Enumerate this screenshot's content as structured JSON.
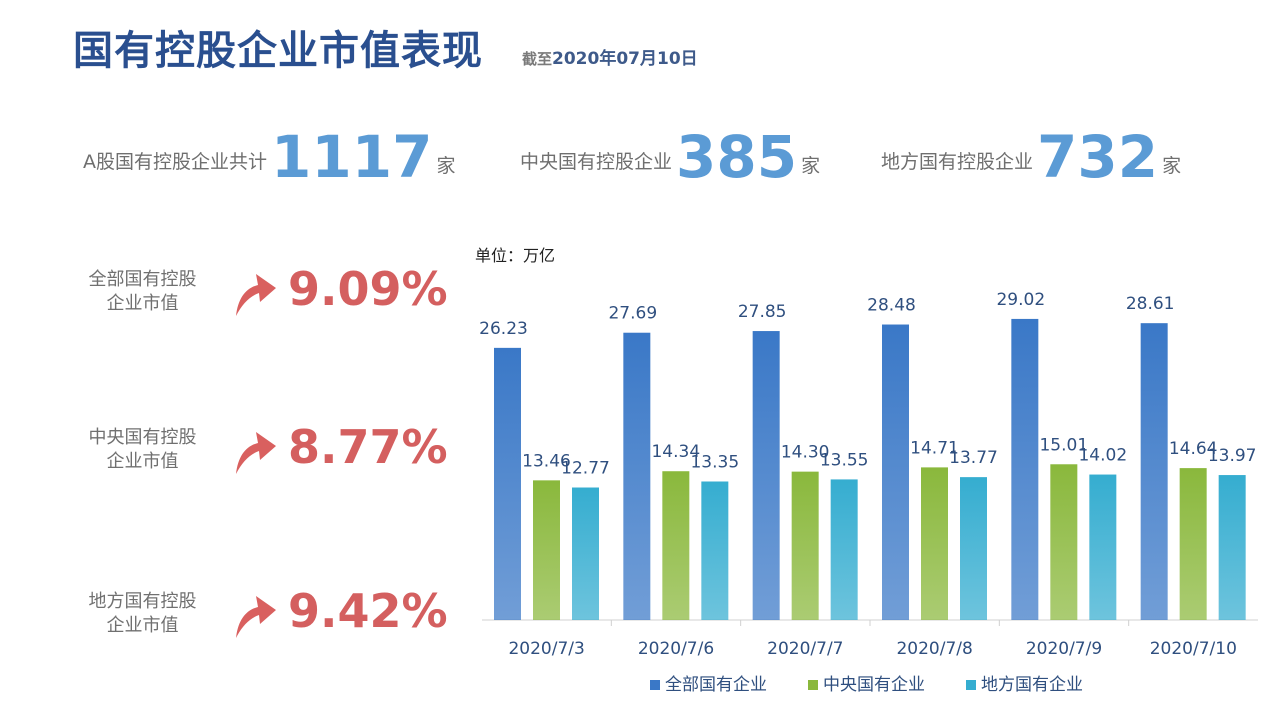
{
  "header": {
    "title": "国有控股企业市值表现",
    "asof_prefix": "截至",
    "asof_date": "2020年07月10日"
  },
  "stats": [
    {
      "label": "A股国有控股企业共计",
      "value": "1117",
      "unit": "家"
    },
    {
      "label": "中央国有控股企业",
      "value": "385",
      "unit": "家"
    },
    {
      "label": "地方国有控股企业",
      "value": "732",
      "unit": "家"
    }
  ],
  "metrics": [
    {
      "label_line1": "全部国有控股",
      "label_line2": "企业市值",
      "change": "9.09%",
      "icon": "up-arrow-icon"
    },
    {
      "label_line1": "中央国有控股",
      "label_line2": "企业市值",
      "change": "8.77%",
      "icon": "up-arrow-icon"
    },
    {
      "label_line1": "地方国有控股",
      "label_line2": "企业市值",
      "change": "9.42%",
      "icon": "up-arrow-icon"
    }
  ],
  "colors": {
    "accent_number": "#5b9bd5",
    "increase": "#d45f5f",
    "title": "#2a4f8f"
  },
  "chart_data": {
    "type": "bar",
    "unit_label": "单位：万亿",
    "categories": [
      "2020/7/3",
      "2020/7/6",
      "2020/7/7",
      "2020/7/8",
      "2020/7/9",
      "2020/7/10"
    ],
    "series": [
      {
        "name": "全部国有企业",
        "color": "#3a78c7",
        "values": [
          26.23,
          27.69,
          27.85,
          28.48,
          29.02,
          28.61
        ]
      },
      {
        "name": "中央国有企业",
        "color": "#8ab83c",
        "values": [
          13.46,
          14.34,
          14.3,
          14.71,
          15.01,
          14.64
        ]
      },
      {
        "name": "地方国有企业",
        "color": "#35add0",
        "values": [
          12.77,
          13.35,
          13.55,
          13.77,
          14.02,
          13.97
        ]
      }
    ],
    "ylim": [
      0,
      32
    ],
    "grid": false,
    "legend": "bottom"
  }
}
